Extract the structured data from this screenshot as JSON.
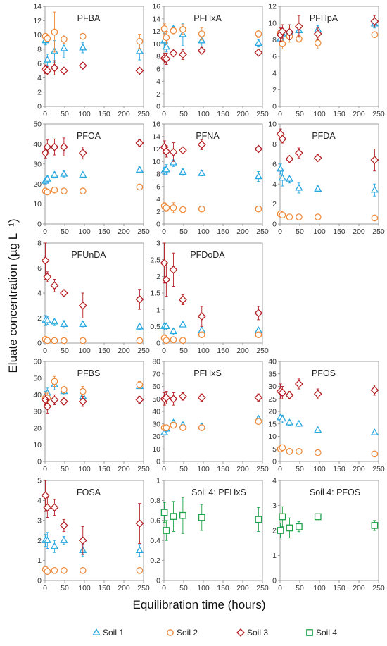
{
  "figure": {
    "xlabel": "Equilibration time (hours)",
    "ylabel": "Eluate concentration (µg L⁻¹)"
  },
  "colors": {
    "Soil 1": "#29a8e0",
    "Soil 2": "#ee8a3c",
    "Soil 3": "#b41f24",
    "Soil 4": "#1fa24a"
  },
  "legend": [
    {
      "name": "Soil 1",
      "marker": "triangle"
    },
    {
      "name": "Soil 2",
      "marker": "circle"
    },
    {
      "name": "Soil 3",
      "marker": "diamond"
    },
    {
      "name": "Soil 4",
      "marker": "square"
    }
  ],
  "chart_data": [
    {
      "type": "scatter",
      "title": "PFBA",
      "x": [
        1,
        6,
        24,
        48,
        96,
        240
      ],
      "xlim": [
        0,
        250
      ],
      "xticks": [
        0,
        50,
        100,
        150,
        200,
        250
      ],
      "ylim": [
        0,
        14
      ],
      "yticks": [
        0,
        2,
        4,
        6,
        8,
        10,
        12,
        14
      ],
      "series": [
        {
          "name": "Soil 1",
          "values": [
            9.2,
            6.5,
            7.7,
            8.1,
            8.2,
            7.7
          ],
          "err": [
            0.6,
            0.8,
            1.5,
            1.3,
            0.7,
            1.2
          ]
        },
        {
          "name": "Soil 2",
          "values": [
            9.8,
            9.5,
            10.4,
            9.4,
            9.8,
            9.1
          ],
          "err": [
            0.3,
            0.4,
            2.8,
            0.6,
            0.2,
            1.0
          ]
        },
        {
          "name": "Soil 3",
          "values": [
            5.2,
            5.0,
            5.4,
            5.0,
            5.7,
            5.0
          ],
          "err": [
            0.6,
            0.6,
            1.0,
            0.3,
            0.3,
            0.3
          ]
        }
      ]
    },
    {
      "type": "scatter",
      "title": "PFHxA",
      "x": [
        1,
        6,
        24,
        48,
        96,
        240
      ],
      "xlim": [
        0,
        250
      ],
      "xticks": [
        0,
        50,
        100,
        150,
        200,
        250
      ],
      "ylim": [
        0,
        16
      ],
      "yticks": [
        0,
        2,
        4,
        6,
        8,
        10,
        12,
        14,
        16
      ],
      "series": [
        {
          "name": "Soil 1",
          "values": [
            10.5,
            9.5,
            12.4,
            11.5,
            10.5,
            10.1
          ],
          "err": [
            1.2,
            0.8,
            0.4,
            1.8,
            1.2,
            0.6
          ]
        },
        {
          "name": "Soil 2",
          "values": [
            12.4,
            11.0,
            12.1,
            12.3,
            11.6,
            11.6
          ],
          "err": [
            0.8,
            1.0,
            0.5,
            0.8,
            1.0,
            0.6
          ]
        },
        {
          "name": "Soil 3",
          "values": [
            7.7,
            7.6,
            8.5,
            8.3,
            8.9,
            8.6
          ],
          "err": [
            0.8,
            0.9,
            0.4,
            0.8,
            0.5,
            0.4
          ]
        }
      ]
    },
    {
      "type": "scatter",
      "title": "PFHpA",
      "x": [
        1,
        6,
        24,
        48,
        96,
        240
      ],
      "xlim": [
        0,
        250
      ],
      "xticks": [
        0,
        50,
        100,
        150,
        200,
        250
      ],
      "ylim": [
        0,
        12
      ],
      "yticks": [
        0,
        2,
        4,
        6,
        8,
        10,
        12
      ],
      "series": [
        {
          "name": "Soil 1",
          "values": [
            8.1,
            8.7,
            8.9,
            9.1,
            9.2,
            9.9
          ],
          "err": [
            0.5,
            0.6,
            0.6,
            0.8,
            0.5,
            0.5
          ]
        },
        {
          "name": "Soil 2",
          "values": [
            8.8,
            7.5,
            8.4,
            8.1,
            7.6,
            8.6
          ],
          "err": [
            0.6,
            0.6,
            0.7,
            0.4,
            0.7,
            0.3
          ]
        },
        {
          "name": "Soil 3",
          "values": [
            8.6,
            9.0,
            8.9,
            9.6,
            8.7,
            10.2
          ],
          "err": [
            0.8,
            0.8,
            0.9,
            1.3,
            0.7,
            0.7
          ]
        }
      ]
    },
    {
      "type": "scatter",
      "title": "PFOA",
      "x": [
        1,
        6,
        24,
        48,
        96,
        240
      ],
      "xlim": [
        0,
        250
      ],
      "xticks": [
        0,
        50,
        100,
        150,
        200,
        250
      ],
      "ylim": [
        0,
        50
      ],
      "yticks": [
        0,
        10,
        20,
        30,
        40,
        50
      ],
      "series": [
        {
          "name": "Soil 1",
          "values": [
            21.5,
            22.5,
            24.5,
            25.0,
            24.5,
            27.0
          ],
          "err": [
            1.5,
            1.5,
            1.5,
            1.5,
            1.0,
            1.5
          ]
        },
        {
          "name": "Soil 2",
          "values": [
            16.5,
            16.0,
            17.0,
            16.5,
            16.5,
            18.5
          ],
          "err": [
            1.0,
            1.0,
            1.0,
            0.8,
            0.8,
            1.0
          ]
        },
        {
          "name": "Soil 3",
          "values": [
            35.5,
            38.5,
            38.5,
            38.5,
            35.5,
            40.5
          ],
          "err": [
            2.5,
            3.5,
            4.0,
            4.5,
            3.0,
            1.5
          ]
        }
      ]
    },
    {
      "type": "scatter",
      "title": "PFNA",
      "x": [
        1,
        6,
        24,
        48,
        96,
        240
      ],
      "xlim": [
        0,
        250
      ],
      "xticks": [
        0,
        50,
        100,
        150,
        200,
        250
      ],
      "ylim": [
        0,
        16
      ],
      "yticks": [
        0,
        2,
        4,
        6,
        8,
        10,
        12,
        14,
        16
      ],
      "series": [
        {
          "name": "Soil 1",
          "values": [
            8.5,
            8.7,
            9.8,
            8.3,
            8.1,
            7.6
          ],
          "err": [
            0.6,
            0.8,
            0.6,
            0.5,
            0.4,
            0.8
          ]
        },
        {
          "name": "Soil 2",
          "values": [
            2.9,
            2.6,
            2.6,
            2.3,
            2.4,
            2.4
          ],
          "err": [
            0.5,
            0.6,
            0.8,
            0.3,
            0.4,
            0.3
          ]
        },
        {
          "name": "Soil 3",
          "values": [
            12.3,
            11.6,
            11.5,
            11.8,
            12.7,
            12.0
          ],
          "err": [
            1.0,
            0.9,
            1.5,
            0.3,
            0.8,
            0.4
          ]
        }
      ]
    },
    {
      "type": "scatter",
      "title": "PFDA",
      "x": [
        1,
        6,
        24,
        48,
        96,
        240
      ],
      "xlim": [
        0,
        250
      ],
      "xticks": [
        0,
        50,
        100,
        150,
        200,
        250
      ],
      "ylim": [
        0,
        10
      ],
      "yticks": [
        0,
        2,
        4,
        6,
        8,
        10
      ],
      "series": [
        {
          "name": "Soil 1",
          "values": [
            5.5,
            4.6,
            4.5,
            3.6,
            3.5,
            3.4
          ],
          "err": [
            0.5,
            0.8,
            0.4,
            0.5,
            0.3,
            0.6
          ]
        },
        {
          "name": "Soil 2",
          "values": [
            1.0,
            0.9,
            0.7,
            0.7,
            0.7,
            0.6
          ],
          "err": [
            0.2,
            0.2,
            0.2,
            0.1,
            0.1,
            0.1
          ]
        },
        {
          "name": "Soil 3",
          "values": [
            9.0,
            8.5,
            6.5,
            7.1,
            6.6,
            6.4
          ],
          "err": [
            0.5,
            0.4,
            0.3,
            0.5,
            0.3,
            1.1
          ]
        }
      ]
    },
    {
      "type": "scatter",
      "title": "PFUnDA",
      "x": [
        1,
        6,
        24,
        48,
        96,
        240
      ],
      "xlim": [
        0,
        250
      ],
      "xticks": [
        0,
        50,
        100,
        150,
        200,
        250
      ],
      "ylim": [
        0,
        8
      ],
      "yticks": [
        0,
        2,
        4,
        6,
        8
      ],
      "series": [
        {
          "name": "Soil 1",
          "values": [
            1.8,
            1.8,
            1.7,
            1.5,
            1.5,
            1.3
          ],
          "err": [
            0.4,
            0.3,
            0.3,
            0.3,
            0.2,
            0.2
          ]
        },
        {
          "name": "Soil 2",
          "values": [
            0.3,
            0.2,
            0.2,
            0.2,
            0.2,
            0.2
          ],
          "err": [
            0.2,
            0.1,
            0.1,
            0.1,
            0.1,
            0.1
          ]
        },
        {
          "name": "Soil 3",
          "values": [
            6.6,
            5.3,
            4.6,
            4.0,
            3.0,
            3.5
          ],
          "err": [
            1.5,
            0.4,
            0.5,
            0.2,
            1.0,
            0.8
          ]
        }
      ]
    },
    {
      "type": "scatter",
      "title": "PFDoDA",
      "x": [
        1,
        6,
        24,
        48,
        96,
        240
      ],
      "xlim": [
        0,
        250
      ],
      "xticks": [
        0,
        50,
        100,
        150,
        200,
        250
      ],
      "ylim": [
        0,
        3
      ],
      "yticks": [
        0,
        0.5,
        1,
        1.5,
        2,
        2.5,
        3
      ],
      "series": [
        {
          "name": "Soil 1",
          "values": [
            0.5,
            0.5,
            0.35,
            0.55,
            0.38,
            0.38
          ],
          "err": [
            0.1,
            0.1,
            0.1,
            0.05,
            0.05,
            0.05
          ]
        },
        {
          "name": "Soil 2",
          "values": [
            0.15,
            0.08,
            0.1,
            0.08,
            0.25,
            0.25
          ],
          "err": [
            0.1,
            0.05,
            0.05,
            0.05,
            0.05,
            0.05
          ]
        },
        {
          "name": "Soil 3",
          "values": [
            2.4,
            1.9,
            2.2,
            1.3,
            0.8,
            0.9
          ],
          "err": [
            0.6,
            0.5,
            0.5,
            0.15,
            0.3,
            0.2
          ]
        }
      ]
    },
    {
      "type": "scatter",
      "title": "PFBS",
      "x": [
        1,
        6,
        24,
        48,
        96,
        240
      ],
      "xlim": [
        0,
        250
      ],
      "xticks": [
        0,
        50,
        100,
        150,
        200,
        250
      ],
      "ylim": [
        0,
        60
      ],
      "yticks": [
        0,
        10,
        20,
        30,
        40,
        50,
        60
      ],
      "series": [
        {
          "name": "Soil 1",
          "values": [
            39,
            41,
            46,
            42,
            39,
            45
          ],
          "err": [
            3,
            3,
            3,
            2,
            2,
            1
          ]
        },
        {
          "name": "Soil 2",
          "values": [
            38,
            38,
            48,
            43,
            42,
            46
          ],
          "err": [
            3,
            3,
            3,
            2,
            3,
            2
          ]
        },
        {
          "name": "Soil 3",
          "values": [
            37,
            33,
            37,
            36,
            36,
            37
          ],
          "err": [
            3,
            4,
            3,
            2,
            3,
            2
          ]
        }
      ]
    },
    {
      "type": "scatter",
      "title": "PFHxS",
      "x": [
        1,
        6,
        24,
        48,
        96,
        240
      ],
      "xlim": [
        0,
        250
      ],
      "xticks": [
        0,
        50,
        100,
        150,
        200,
        250
      ],
      "ylim": [
        0,
        80
      ],
      "yticks": [
        0,
        10,
        20,
        30,
        40,
        50,
        60,
        70,
        80
      ],
      "series": [
        {
          "name": "Soil 1",
          "values": [
            23,
            26,
            31,
            29,
            28,
            34
          ],
          "err": [
            2,
            2,
            2,
            2,
            2,
            2
          ]
        },
        {
          "name": "Soil 2",
          "values": [
            27,
            27,
            29,
            27,
            27,
            32
          ],
          "err": [
            2,
            2,
            2,
            2,
            2,
            2
          ]
        },
        {
          "name": "Soil 3",
          "values": [
            50,
            51,
            50,
            52,
            51,
            51
          ],
          "err": [
            5,
            5,
            5,
            3,
            3,
            3
          ]
        }
      ]
    },
    {
      "type": "scatter",
      "title": "PFOS",
      "x": [
        1,
        6,
        24,
        48,
        96,
        240
      ],
      "xlim": [
        0,
        250
      ],
      "xticks": [
        0,
        50,
        100,
        150,
        200,
        250
      ],
      "ylim": [
        0,
        40
      ],
      "yticks": [
        0,
        5,
        10,
        15,
        20,
        25,
        30,
        35,
        40
      ],
      "series": [
        {
          "name": "Soil 1",
          "values": [
            17.5,
            17,
            15.5,
            15,
            12.5,
            11.5
          ],
          "err": [
            1,
            1.5,
            1,
            1,
            1,
            0.5
          ]
        },
        {
          "name": "Soil 2",
          "values": [
            5,
            5.5,
            4,
            4,
            3.5,
            3
          ],
          "err": [
            0.5,
            0.5,
            0.5,
            0.5,
            0.5,
            0.5
          ]
        },
        {
          "name": "Soil 3",
          "values": [
            28,
            27.5,
            26.5,
            31,
            27,
            28.5
          ],
          "err": [
            3,
            2.5,
            1.5,
            2,
            2,
            2
          ]
        }
      ]
    },
    {
      "type": "scatter",
      "title": "FOSA",
      "x": [
        1,
        6,
        24,
        48,
        96,
        240
      ],
      "xlim": [
        0,
        250
      ],
      "xticks": [
        0,
        50,
        100,
        150,
        200,
        250
      ],
      "ylim": [
        0,
        5
      ],
      "yticks": [
        0,
        1,
        2,
        3,
        4,
        5
      ],
      "series": [
        {
          "name": "Soil 1",
          "values": [
            2.0,
            2.0,
            1.7,
            2.0,
            1.5,
            1.5
          ],
          "err": [
            0.3,
            0.4,
            0.3,
            0.2,
            0.3,
            0.3
          ]
        },
        {
          "name": "Soil 2",
          "values": [
            0.55,
            0.45,
            0.5,
            0.5,
            0.5,
            0.5
          ],
          "err": [
            0.1,
            0.1,
            0.1,
            0.1,
            0.1,
            0.1
          ]
        },
        {
          "name": "Soil 3",
          "values": [
            4.25,
            3.65,
            3.65,
            2.75,
            2.0,
            2.85
          ],
          "err": [
            0.8,
            0.5,
            0.4,
            0.3,
            0.7,
            1.0
          ]
        }
      ]
    },
    {
      "type": "scatter",
      "title": "Soil 4: PFHxS",
      "x": [
        1,
        6,
        24,
        48,
        96,
        240
      ],
      "xlim": [
        0,
        250
      ],
      "xticks": [
        0,
        50,
        100,
        150,
        200,
        250
      ],
      "ylim": [
        0,
        1
      ],
      "yticks": [
        0,
        0.2,
        0.4,
        0.6,
        0.8,
        1
      ],
      "series": [
        {
          "name": "Soil 4",
          "values": [
            0.68,
            0.5,
            0.64,
            0.65,
            0.63,
            0.61
          ],
          "err": [
            0.1,
            0.1,
            0.15,
            0.18,
            0.13,
            0.12
          ]
        }
      ]
    },
    {
      "type": "scatter",
      "title": "Soil 4: PFOS",
      "x": [
        1,
        6,
        24,
        48,
        96,
        240
      ],
      "xlim": [
        0,
        250
      ],
      "xticks": [
        0,
        50,
        100,
        150,
        200,
        250
      ],
      "ylim": [
        0,
        4
      ],
      "yticks": [
        0,
        1,
        2,
        3,
        4
      ],
      "series": [
        {
          "name": "Soil 4",
          "values": [
            2.0,
            2.55,
            2.1,
            2.15,
            2.55,
            2.2
          ],
          "err": [
            0.3,
            0.4,
            0.4,
            0.2,
            0.1,
            0.2
          ]
        }
      ]
    }
  ]
}
